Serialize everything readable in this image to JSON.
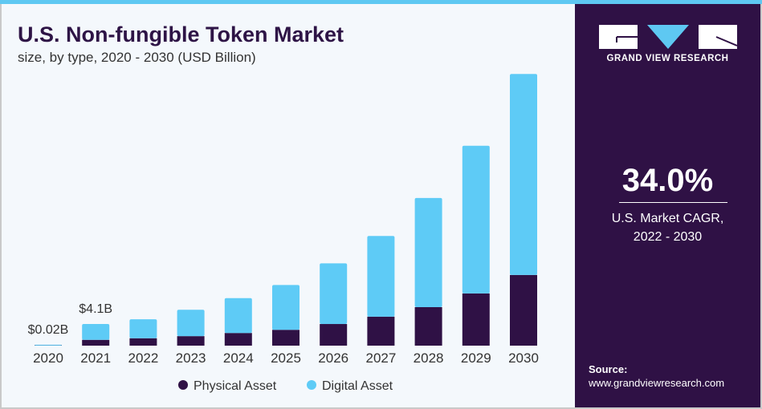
{
  "header": {
    "title": "U.S. Non-fungible Token Market",
    "subtitle": "size, by type, 2020 - 2030 (USD Billion)"
  },
  "sidebar": {
    "brand": "GRAND VIEW RESEARCH",
    "cagr_value": "34.0%",
    "cagr_label_1": "U.S. Market CAGR,",
    "cagr_label_2": "2022 - 2030",
    "source_label": "Source:",
    "source_url": "www.grandviewresearch.com"
  },
  "colors": {
    "physical": "#2f1145",
    "digital": "#5ecbf6"
  },
  "chart_data": {
    "type": "bar",
    "stacked": true,
    "title": "U.S. Non-fungible Token Market",
    "categories": [
      "2020",
      "2021",
      "2022",
      "2023",
      "2024",
      "2025",
      "2026",
      "2027",
      "2028",
      "2029",
      "2030"
    ],
    "series": [
      {
        "name": "Physical Asset",
        "values": [
          0.01,
          1.1,
          1.4,
          1.8,
          2.4,
          3.0,
          4.1,
          5.5,
          7.3,
          9.9,
          13.4
        ]
      },
      {
        "name": "Digital Asset",
        "values": [
          0.01,
          3.0,
          3.6,
          5.0,
          6.6,
          8.5,
          11.5,
          15.3,
          20.7,
          28.0,
          38.1
        ]
      }
    ],
    "annotations": [
      {
        "category": "2020",
        "text": "$0.02B"
      },
      {
        "category": "2021",
        "text": "$4.1B"
      }
    ],
    "ylim": [
      0,
      52
    ],
    "legend": "bottom",
    "grid": false
  }
}
